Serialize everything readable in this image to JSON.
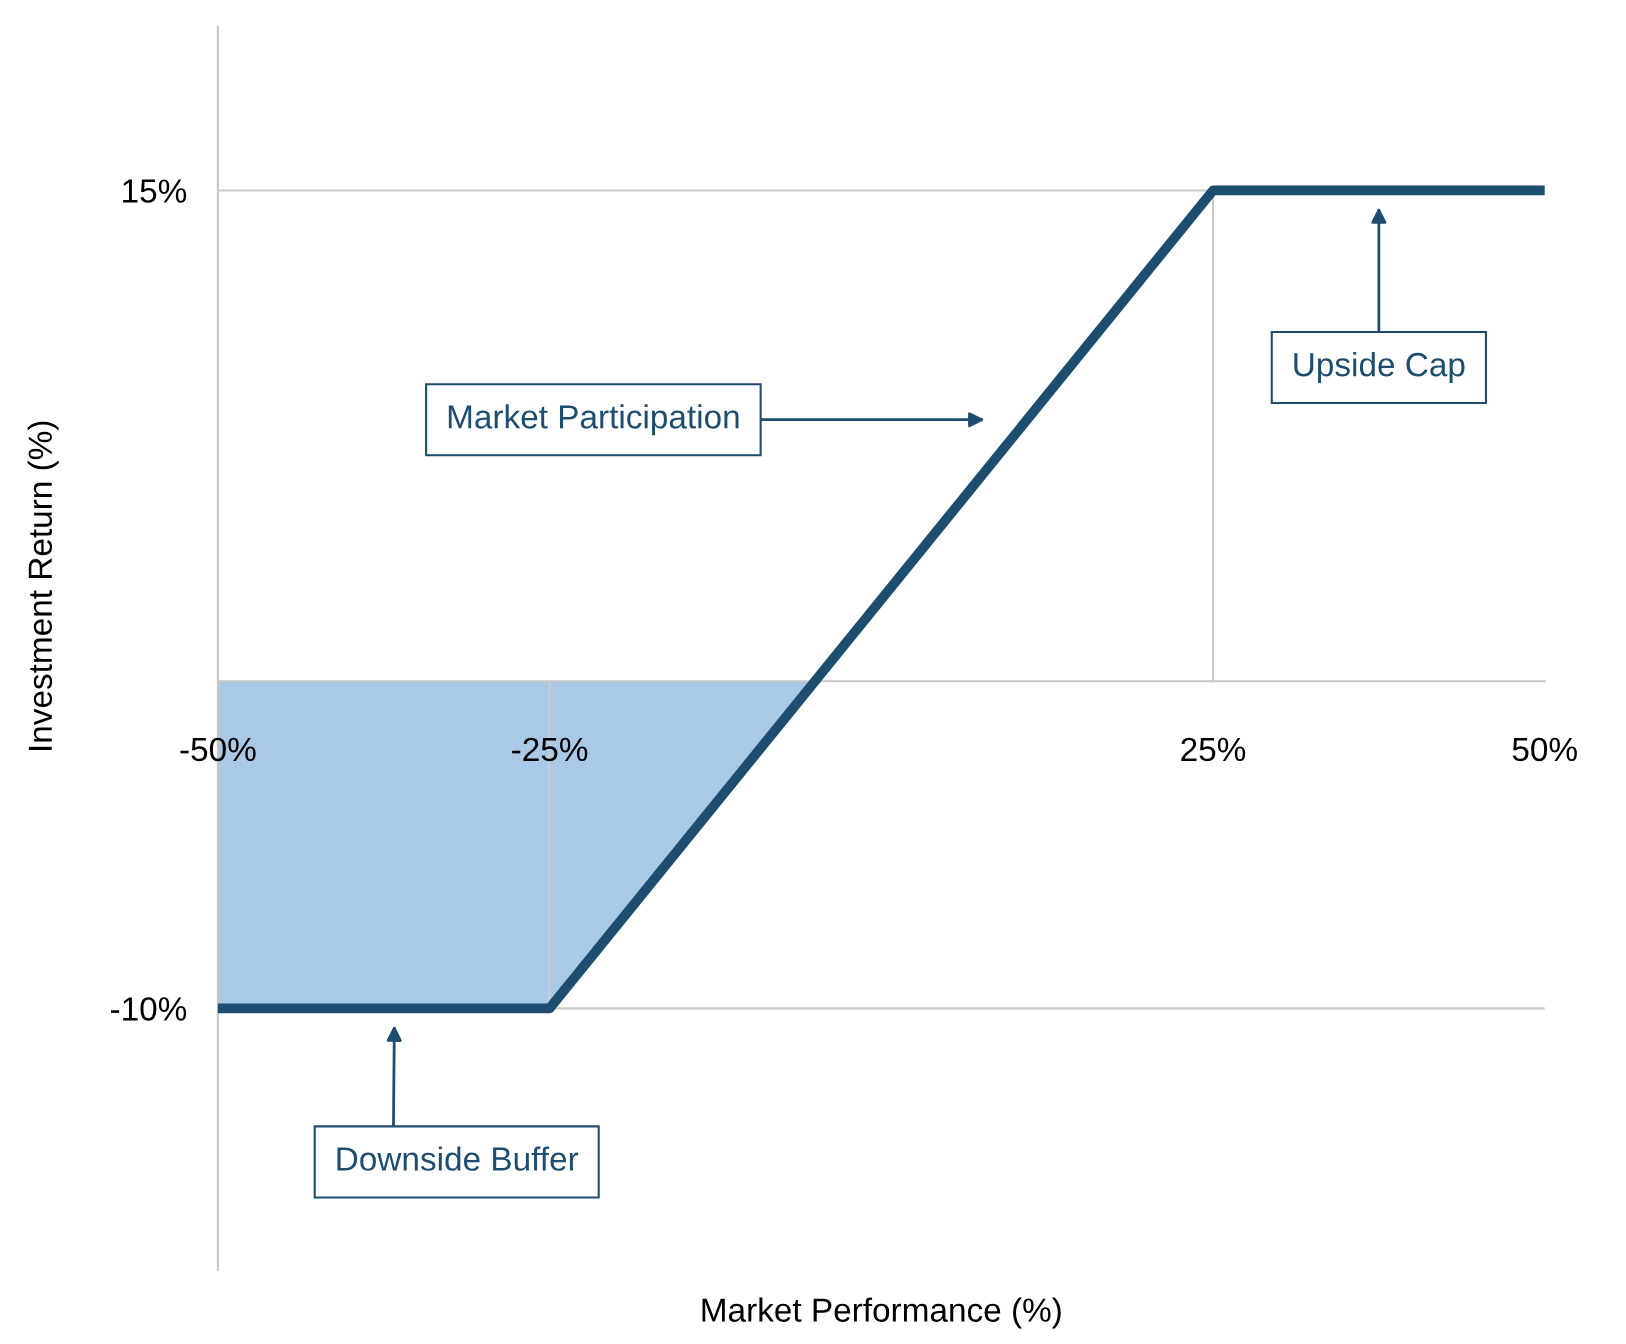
{
  "chart_data": {
    "type": "line",
    "xlabel": "Market Performance (%)",
    "ylabel": "Investment Return (%)",
    "series": [
      {
        "type": "area",
        "color": "#a9c9e6",
        "x": [
          -50,
          -25,
          -5
        ],
        "values": [
          -10,
          -10,
          0
        ]
      },
      {
        "color": "#1d4e70",
        "x": [
          -50,
          -25,
          25,
          50
        ],
        "values": [
          -10,
          -10,
          15,
          15
        ]
      }
    ],
    "xlim": [
      -50,
      50
    ],
    "xticks": [
      {
        "value": -50,
        "label": "-50%"
      },
      {
        "value": -25,
        "label": "-25%"
      },
      {
        "value": 25,
        "label": "25%"
      },
      {
        "value": 50,
        "label": "50%"
      }
    ],
    "ylim": [
      -18,
      20
    ],
    "yticks": [
      {
        "value": -10,
        "label": "-10%"
      },
      {
        "value": 15,
        "label": "15%"
      }
    ],
    "ref_lines": [
      {
        "axis": "x",
        "value": -25,
        "color": "#cccccc"
      },
      {
        "axis": "x",
        "value": 25,
        "color": "#cccccc"
      }
    ],
    "annotations": [
      "Upside Cap",
      "Market Participation",
      "Downside Buffer"
    ],
    "grid": "y",
    "legend": false,
    "marker": "none",
    "line_style": "solid"
  }
}
